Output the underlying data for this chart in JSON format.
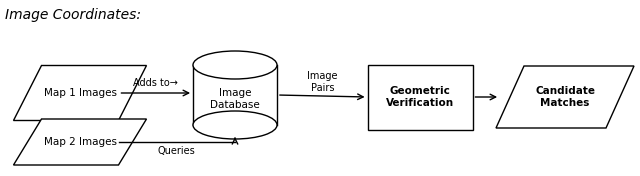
{
  "background_color": "#ffffff",
  "map1": {
    "label": "Map 1 Images",
    "fontsize": 8,
    "bold": false
  },
  "map2": {
    "label": "Map 2 Images",
    "fontsize": 8,
    "bold": false
  },
  "cylinder_label": "Image\nDatabase",
  "geo_label": "Geometric\nVerification",
  "cand_label": "Candidate\nMatches",
  "adds_to_label": "Adds to→",
  "queries_label": "Queries",
  "img_pairs_label": "Image\nPairs",
  "fontsize_shape": 7.5,
  "fontsize_arrow": 7.0,
  "lw": 1.0
}
